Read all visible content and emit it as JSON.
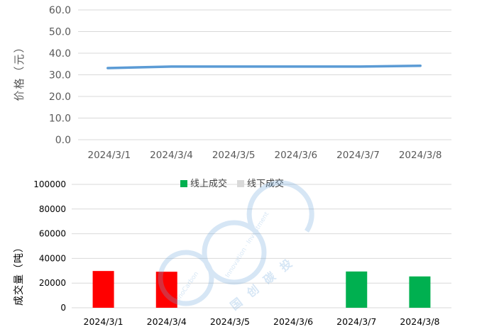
{
  "chart_data": [
    {
      "type": "line",
      "categories": [
        "2024/3/1",
        "2024/3/4",
        "2024/3/5",
        "2024/3/6",
        "2024/3/7",
        "2024/3/8"
      ],
      "series": [
        {
          "values": [
            33.1,
            33.8,
            33.8,
            33.8,
            33.8,
            34.2
          ],
          "color": "#5B9BD5"
        }
      ],
      "title": "",
      "xlabel": "",
      "ylabel": "价格（元）",
      "ylim": [
        0,
        60
      ],
      "yticks": [
        "0.0",
        "10.0",
        "20.0",
        "30.0",
        "40.0",
        "50.0",
        "60.0"
      ],
      "grid": true,
      "legend": "none"
    },
    {
      "type": "bar",
      "categories": [
        "2024/3/1",
        "2024/3/4",
        "2024/3/5",
        "2024/3/6",
        "2024/3/7",
        "2024/3/8"
      ],
      "series": [
        {
          "name": "线上成交",
          "values": [
            null,
            null,
            null,
            null,
            29400,
            25400
          ],
          "color": "#00B050"
        },
        {
          "name": "线下成交",
          "values": [
            null,
            null,
            null,
            null,
            null,
            null
          ],
          "color": "#D9D9D9"
        }
      ],
      "point_colors": [
        "#FF0000",
        "#FF0000",
        null,
        null,
        "#00B050",
        "#00B050"
      ],
      "totals": [
        29800,
        29200,
        0,
        0,
        29400,
        25400
      ],
      "title": "",
      "xlabel": "",
      "ylabel": "成交量（吨）",
      "ylim": [
        0,
        100000
      ],
      "yticks": [
        "0",
        "20000",
        "40000",
        "60000",
        "80000",
        "100000"
      ],
      "grid": true,
      "legend": "top-center"
    }
  ],
  "watermark": {
    "text_arc_1": "SinoCarbon",
    "text_arc_2": "Innovation · Investment",
    "text_cn": "国 创 碳 投",
    "color": "#6FA8DC"
  }
}
